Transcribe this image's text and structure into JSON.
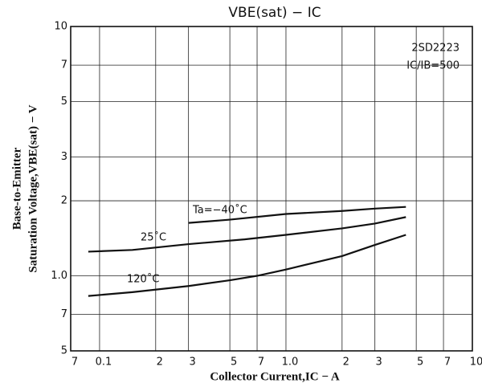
{
  "chart_data": {
    "type": "line",
    "title": "VBE(sat) − IC",
    "x_label": "Collector Current,IC − A",
    "y_label": [
      "Base-to-Emitter",
      "Saturation Voltage,VBE(sat) − V"
    ],
    "annotations": [
      "2SD2223",
      "IC/IB=500"
    ],
    "log_x": true,
    "log_y": true,
    "grid": true,
    "xlim": [
      0.07,
      10
    ],
    "xticks": [
      {
        "value": 0.07,
        "label": "7"
      },
      0.1,
      {
        "value": 0.2,
        "label": "2"
      },
      {
        "value": 0.3,
        "label": "3"
      },
      {
        "value": 0.5,
        "label": "5"
      },
      {
        "value": 0.7,
        "label": "7"
      },
      {
        "value": 1,
        "label": "1.0"
      },
      2,
      3,
      5,
      7,
      10
    ],
    "ylim": [
      0.5,
      10
    ],
    "yticks": [
      {
        "value": 0.5,
        "label": "5"
      },
      {
        "value": 0.7,
        "label": "7"
      },
      {
        "value": 1,
        "label": "1.0"
      },
      2,
      3,
      5,
      7,
      10
    ],
    "series": [
      {
        "name": "Ta=−40˚C",
        "color": "#111111",
        "x": [
          0.3,
          0.5,
          1,
          2,
          3,
          4.4
        ],
        "values": [
          1.63,
          1.68,
          1.77,
          1.82,
          1.86,
          1.89
        ]
      },
      {
        "name": "25˚C",
        "color": "#111111",
        "x": [
          0.087,
          0.15,
          0.3,
          0.6,
          1,
          2,
          3,
          4.4
        ],
        "values": [
          1.25,
          1.27,
          1.34,
          1.4,
          1.46,
          1.55,
          1.62,
          1.72
        ]
      },
      {
        "name": "120˚C",
        "color": "#111111",
        "x": [
          0.087,
          0.15,
          0.3,
          0.5,
          0.7,
          1,
          2,
          3,
          4.4
        ],
        "values": [
          0.83,
          0.86,
          0.91,
          0.96,
          1.0,
          1.06,
          1.2,
          1.33,
          1.46
        ]
      }
    ]
  }
}
